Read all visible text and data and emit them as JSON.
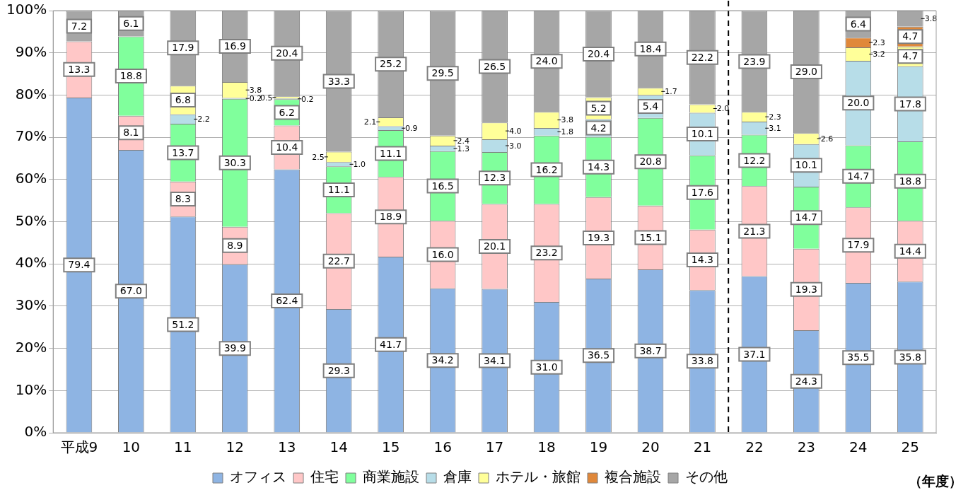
{
  "chart_data": {
    "type": "bar",
    "stacked": true,
    "xlabel": "（年度）",
    "categories": [
      "平成9",
      "10",
      "11",
      "12",
      "13",
      "14",
      "15",
      "16",
      "17",
      "18",
      "19",
      "20",
      "21",
      "22",
      "23",
      "24",
      "25"
    ],
    "ylim": [
      0,
      100
    ],
    "yticks": [
      {
        "value": 0,
        "label": "0%"
      },
      {
        "value": 10,
        "label": "10%"
      },
      {
        "value": 20,
        "label": "20%"
      },
      {
        "value": 30,
        "label": "30%"
      },
      {
        "value": 40,
        "label": "40%"
      },
      {
        "value": 50,
        "label": "50%"
      },
      {
        "value": 60,
        "label": "60%"
      },
      {
        "value": 70,
        "label": "70%"
      },
      {
        "value": 80,
        "label": "80%"
      },
      {
        "value": 90,
        "label": "90%"
      },
      {
        "value": 100,
        "label": "100%"
      }
    ],
    "grid": "y",
    "legend": "bottom",
    "ref_lines": [
      {
        "axis": "x",
        "value": "22",
        "line_style": "dashed",
        "color": "#000000"
      }
    ],
    "series": [
      {
        "name": "オフィス",
        "color": "#8eb4e3",
        "values": [
          79.4,
          67.0,
          51.2,
          39.9,
          62.4,
          29.3,
          41.7,
          34.2,
          34.1,
          31.0,
          36.5,
          38.7,
          33.8,
          37.1,
          24.3,
          35.5,
          35.8
        ],
        "value_labels": [
          "79.4",
          "67.0",
          "51.2",
          "39.9",
          "62.4",
          "29.3",
          "41.7",
          "34.2",
          "34.1",
          "31.0",
          "36.5",
          "38.7",
          "33.8",
          "37.1",
          "24.3",
          "35.5",
          "35.8"
        ]
      },
      {
        "name": "住宅",
        "color": "#ffc7c7",
        "values": [
          13.3,
          8.1,
          8.3,
          8.9,
          10.4,
          22.7,
          18.9,
          16.0,
          20.1,
          23.2,
          19.3,
          15.1,
          14.3,
          21.3,
          19.3,
          17.9,
          14.4
        ],
        "value_labels": [
          "13.3",
          "8.1",
          "8.3",
          "8.9",
          "10.4",
          "22.7",
          "18.9",
          "16.0",
          "20.1",
          "23.2",
          "19.3",
          "15.1",
          "14.3",
          "21.3",
          "19.3",
          "17.9",
          "14.4"
        ]
      },
      {
        "name": "商業施設",
        "color": "#80ff9c",
        "values": [
          null,
          18.8,
          13.7,
          30.3,
          6.2,
          11.1,
          11.1,
          16.5,
          12.3,
          16.2,
          14.3,
          20.8,
          17.6,
          12.2,
          14.7,
          14.7,
          18.8
        ],
        "value_labels": [
          null,
          "18.8",
          "13.7",
          "30.3",
          "6.2",
          "11.1",
          "11.1",
          "16.5",
          "12.3",
          "16.2",
          "14.3",
          "20.8",
          "17.6",
          "12.2",
          "14.7",
          "14.7",
          "18.8"
        ]
      },
      {
        "name": "倉庫",
        "color": "#b7dde8",
        "values": [
          null,
          null,
          2.2,
          0.2,
          0.2,
          1.0,
          0.9,
          1.3,
          3.0,
          1.8,
          4.2,
          5.4,
          10.1,
          3.1,
          10.1,
          20.0,
          17.8
        ],
        "value_labels": [
          null,
          null,
          "2.2",
          "0.2",
          "0.2",
          "1.0",
          "0.9",
          "1.3",
          "3.0",
          "1.8",
          "4.2",
          "5.4",
          "10.1",
          "3.1",
          "10.1",
          "20.0",
          "17.8"
        ]
      },
      {
        "name": "ホテル・旅館",
        "color": "#ffff99",
        "values": [
          null,
          null,
          6.8,
          3.8,
          0.5,
          2.5,
          2.1,
          2.4,
          4.0,
          3.8,
          5.2,
          1.7,
          2.0,
          2.3,
          2.6,
          3.2,
          4.7
        ],
        "value_labels": [
          null,
          null,
          "6.8",
          "3.8",
          "0.5",
          "2.5",
          "2.1",
          "2.4",
          "4.0",
          "3.8",
          "5.2",
          "1.7",
          "2.0",
          "2.3",
          "2.6",
          "3.2",
          "4.7"
        ]
      },
      {
        "name": "複合施設",
        "color": "#e0883a",
        "values": [
          null,
          null,
          null,
          null,
          null,
          null,
          null,
          null,
          null,
          null,
          null,
          null,
          null,
          null,
          null,
          2.3,
          4.7
        ],
        "value_labels": [
          null,
          null,
          null,
          null,
          null,
          null,
          null,
          null,
          null,
          null,
          null,
          null,
          null,
          null,
          null,
          "2.3",
          "4.7"
        ]
      },
      {
        "name": "その他",
        "color": "#a6a6a6",
        "values": [
          7.2,
          6.1,
          17.9,
          16.9,
          20.4,
          33.3,
          25.2,
          29.5,
          26.5,
          24.0,
          20.4,
          18.4,
          22.2,
          23.9,
          29.0,
          6.4,
          3.8
        ],
        "value_labels": [
          "7.2",
          "6.1",
          "17.9",
          "16.9",
          "20.4",
          "33.3",
          "25.2",
          "29.5",
          "26.5",
          "24.0",
          "20.4",
          "18.4",
          "22.2",
          "23.9",
          "29.0",
          "6.4",
          "3.8"
        ]
      }
    ]
  }
}
